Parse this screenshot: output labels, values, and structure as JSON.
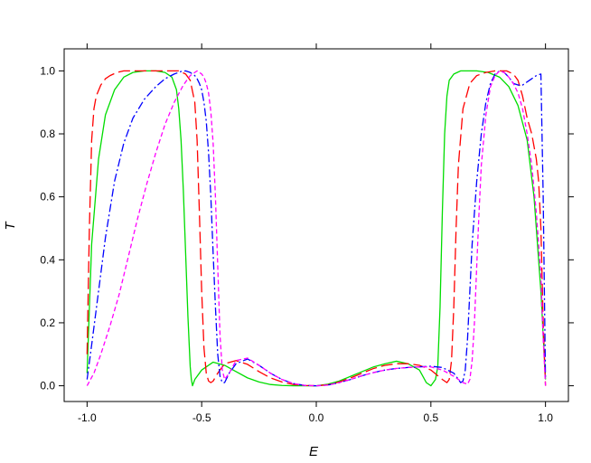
{
  "chart_data": {
    "type": "line",
    "title": "",
    "xlabel": "E",
    "ylabel": "T",
    "xlim": [
      -1.1,
      1.1
    ],
    "ylim": [
      -0.05,
      1.07
    ],
    "x_ticks": [
      -1.0,
      -0.5,
      0.0,
      0.5,
      1.0
    ],
    "x_tick_labels": [
      "-1.0",
      "-0.5",
      "0.0",
      "0.5",
      "1.0"
    ],
    "y_ticks": [
      0.0,
      0.2,
      0.4,
      0.6,
      0.8,
      1.0
    ],
    "y_tick_labels": [
      "0.0",
      "0.2",
      "0.4",
      "0.6",
      "0.8",
      "1.0"
    ],
    "grid": false,
    "legend": "none",
    "series": [
      {
        "color": "#00dd00",
        "dash": "solid",
        "x": [
          -1.0,
          -0.98,
          -0.95,
          -0.92,
          -0.88,
          -0.84,
          -0.8,
          -0.75,
          -0.7,
          -0.66,
          -0.63,
          -0.61,
          -0.6,
          -0.59,
          -0.58,
          -0.57,
          -0.56,
          -0.55,
          -0.545,
          -0.54,
          -0.53,
          -0.5,
          -0.45,
          -0.4,
          -0.35,
          -0.3,
          -0.25,
          -0.2,
          -0.15,
          -0.1,
          -0.05,
          0.0,
          0.05,
          0.1,
          0.15,
          0.2,
          0.25,
          0.3,
          0.35,
          0.4,
          0.45,
          0.48,
          0.5,
          0.52,
          0.53,
          0.54,
          0.55,
          0.56,
          0.57,
          0.58,
          0.6,
          0.63,
          0.66,
          0.7,
          0.75,
          0.8,
          0.84,
          0.88,
          0.92,
          0.95,
          0.98,
          1.0
        ],
        "y": [
          0.04,
          0.45,
          0.72,
          0.86,
          0.94,
          0.98,
          0.995,
          1.0,
          1.0,
          0.995,
          0.98,
          0.94,
          0.88,
          0.78,
          0.62,
          0.42,
          0.22,
          0.06,
          0.02,
          0.0,
          0.02,
          0.05,
          0.075,
          0.065,
          0.045,
          0.025,
          0.012,
          0.004,
          0.001,
          0.0,
          0.0,
          0.0,
          0.005,
          0.015,
          0.03,
          0.045,
          0.06,
          0.07,
          0.078,
          0.07,
          0.05,
          0.01,
          0.0,
          0.02,
          0.06,
          0.25,
          0.55,
          0.8,
          0.92,
          0.97,
          0.99,
          1.0,
          1.0,
          1.0,
          0.995,
          0.98,
          0.95,
          0.89,
          0.78,
          0.6,
          0.3,
          0.02
        ]
      },
      {
        "color": "#ff0000",
        "dash": "long-dash",
        "x": [
          -1.0,
          -0.99,
          -0.98,
          -0.97,
          -0.96,
          -0.94,
          -0.92,
          -0.9,
          -0.87,
          -0.84,
          -0.8,
          -0.75,
          -0.7,
          -0.65,
          -0.6,
          -0.57,
          -0.55,
          -0.53,
          -0.52,
          -0.51,
          -0.5,
          -0.49,
          -0.48,
          -0.47,
          -0.46,
          -0.45,
          -0.43,
          -0.4,
          -0.35,
          -0.3,
          -0.25,
          -0.2,
          -0.15,
          -0.1,
          -0.05,
          0.0,
          0.05,
          0.1,
          0.15,
          0.2,
          0.25,
          0.3,
          0.35,
          0.4,
          0.45,
          0.5,
          0.55,
          0.57,
          0.58,
          0.59,
          0.6,
          0.61,
          0.62,
          0.64,
          0.67,
          0.7,
          0.74,
          0.78,
          0.8,
          0.83,
          0.86,
          0.88,
          0.9,
          0.92,
          0.94,
          0.96,
          0.97,
          0.98,
          0.99,
          1.0
        ],
        "y": [
          0.1,
          0.5,
          0.78,
          0.88,
          0.92,
          0.955,
          0.975,
          0.985,
          0.995,
          1.0,
          1.0,
          1.0,
          1.0,
          1.0,
          1.0,
          0.99,
          0.97,
          0.9,
          0.78,
          0.55,
          0.3,
          0.12,
          0.04,
          0.015,
          0.01,
          0.015,
          0.04,
          0.07,
          0.08,
          0.068,
          0.045,
          0.025,
          0.012,
          0.004,
          0.001,
          0.0,
          0.003,
          0.012,
          0.025,
          0.04,
          0.055,
          0.065,
          0.07,
          0.07,
          0.065,
          0.05,
          0.02,
          0.01,
          0.02,
          0.08,
          0.25,
          0.5,
          0.7,
          0.88,
          0.96,
          0.985,
          0.995,
          1.0,
          1.0,
          1.0,
          0.99,
          0.97,
          0.92,
          0.85,
          0.8,
          0.72,
          0.65,
          0.5,
          0.2,
          0.0
        ]
      },
      {
        "color": "#0000ff",
        "dash": "dash-dot",
        "x": [
          -1.0,
          -0.98,
          -0.95,
          -0.92,
          -0.88,
          -0.84,
          -0.8,
          -0.75,
          -0.7,
          -0.66,
          -0.62,
          -0.59,
          -0.57,
          -0.55,
          -0.54,
          -0.53,
          -0.52,
          -0.51,
          -0.5,
          -0.49,
          -0.48,
          -0.47,
          -0.46,
          -0.45,
          -0.44,
          -0.43,
          -0.42,
          -0.41,
          -0.4,
          -0.38,
          -0.35,
          -0.3,
          -0.25,
          -0.2,
          -0.15,
          -0.1,
          -0.05,
          0.0,
          0.05,
          0.1,
          0.15,
          0.2,
          0.25,
          0.3,
          0.35,
          0.4,
          0.45,
          0.5,
          0.55,
          0.6,
          0.62,
          0.63,
          0.64,
          0.65,
          0.66,
          0.67,
          0.68,
          0.7,
          0.72,
          0.74,
          0.76,
          0.78,
          0.8,
          0.82,
          0.84,
          0.86,
          0.88,
          0.9,
          0.92,
          0.94,
          0.96,
          0.98,
          0.99,
          1.0
        ],
        "y": [
          0.02,
          0.13,
          0.3,
          0.47,
          0.65,
          0.77,
          0.85,
          0.91,
          0.95,
          0.975,
          0.99,
          0.998,
          1.0,
          0.995,
          0.99,
          0.985,
          0.975,
          0.96,
          0.94,
          0.9,
          0.84,
          0.74,
          0.6,
          0.42,
          0.25,
          0.1,
          0.03,
          0.01,
          0.01,
          0.04,
          0.07,
          0.085,
          0.065,
          0.04,
          0.02,
          0.007,
          0.001,
          0.0,
          0.002,
          0.01,
          0.02,
          0.032,
          0.042,
          0.05,
          0.055,
          0.058,
          0.06,
          0.062,
          0.058,
          0.04,
          0.02,
          0.01,
          0.015,
          0.05,
          0.15,
          0.3,
          0.45,
          0.65,
          0.8,
          0.9,
          0.96,
          0.99,
          1.0,
          0.995,
          0.98,
          0.96,
          0.955,
          0.955,
          0.965,
          0.975,
          0.985,
          0.99,
          0.6,
          0.02
        ]
      },
      {
        "color": "#ff00ff",
        "dash": "short-dash",
        "x": [
          -1.0,
          -0.97,
          -0.94,
          -0.9,
          -0.86,
          -0.82,
          -0.78,
          -0.74,
          -0.7,
          -0.66,
          -0.62,
          -0.58,
          -0.55,
          -0.53,
          -0.52,
          -0.51,
          -0.5,
          -0.49,
          -0.48,
          -0.47,
          -0.46,
          -0.45,
          -0.44,
          -0.43,
          -0.42,
          -0.41,
          -0.4,
          -0.38,
          -0.35,
          -0.3,
          -0.25,
          -0.2,
          -0.15,
          -0.1,
          -0.05,
          0.0,
          0.05,
          0.1,
          0.15,
          0.2,
          0.25,
          0.3,
          0.35,
          0.4,
          0.45,
          0.5,
          0.55,
          0.6,
          0.64,
          0.66,
          0.67,
          0.68,
          0.69,
          0.7,
          0.71,
          0.72,
          0.74,
          0.76,
          0.78,
          0.8,
          0.82,
          0.84,
          0.86,
          0.88,
          0.9,
          0.92,
          0.94,
          0.96,
          0.98,
          0.99,
          1.0
        ],
        "y": [
          0.0,
          0.04,
          0.1,
          0.19,
          0.29,
          0.41,
          0.53,
          0.64,
          0.74,
          0.83,
          0.9,
          0.955,
          0.985,
          0.995,
          1.0,
          0.995,
          0.99,
          0.98,
          0.96,
          0.93,
          0.87,
          0.77,
          0.6,
          0.38,
          0.16,
          0.05,
          0.02,
          0.04,
          0.08,
          0.088,
          0.065,
          0.04,
          0.02,
          0.007,
          0.001,
          0.0,
          0.002,
          0.01,
          0.02,
          0.032,
          0.042,
          0.05,
          0.055,
          0.058,
          0.06,
          0.06,
          0.05,
          0.03,
          0.01,
          0.005,
          0.02,
          0.08,
          0.2,
          0.38,
          0.55,
          0.7,
          0.86,
          0.95,
          0.985,
          1.0,
          0.995,
          0.98,
          0.96,
          0.93,
          0.88,
          0.8,
          0.7,
          0.55,
          0.35,
          0.15,
          0.0
        ]
      }
    ]
  }
}
